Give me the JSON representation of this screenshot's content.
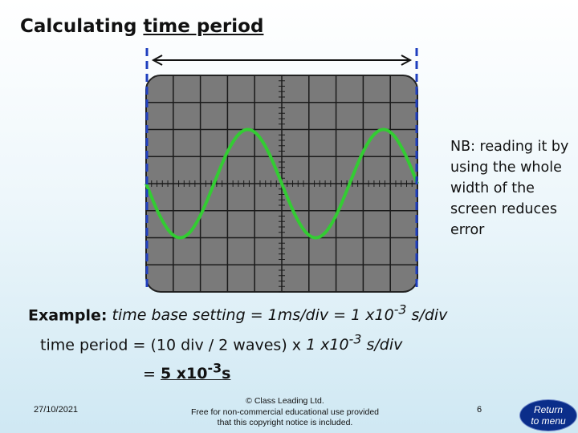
{
  "title": {
    "prefix": "Calculating ",
    "underlined": "time period"
  },
  "note": "NB: reading it by using the whole width of the screen reduces error",
  "example": {
    "label": "Example:",
    "line1_text": " time base setting = 1ms/div = 1 x10",
    "line1_exp": "-3",
    "line1_unit": " s/div",
    "line2_text": "time period  = (10 div / 2 waves) x ",
    "line2_ital": "1 x10",
    "line2_exp": "-3",
    "line2_unit": " s/div",
    "line3_text": "= ",
    "line3_ans": "5 x10",
    "line3_exp": "-3",
    "line3_unit": "s"
  },
  "footer": {
    "date": "27/10/2021",
    "copyright": "© Class Leading Ltd.",
    "copyright_line2": "Free for non-commercial educational use provided",
    "copyright_line3": "that this copyright notice is included.",
    "page": "6"
  },
  "menu_button": {
    "line1": "Return",
    "line2": "to menu"
  },
  "colors": {
    "screen": "#7a7a7a",
    "wave": "#33cc33",
    "marker": "#1f3fbf",
    "button": "#0b2e8a"
  },
  "waveform": {
    "cycles": 2,
    "divisions": 10
  }
}
